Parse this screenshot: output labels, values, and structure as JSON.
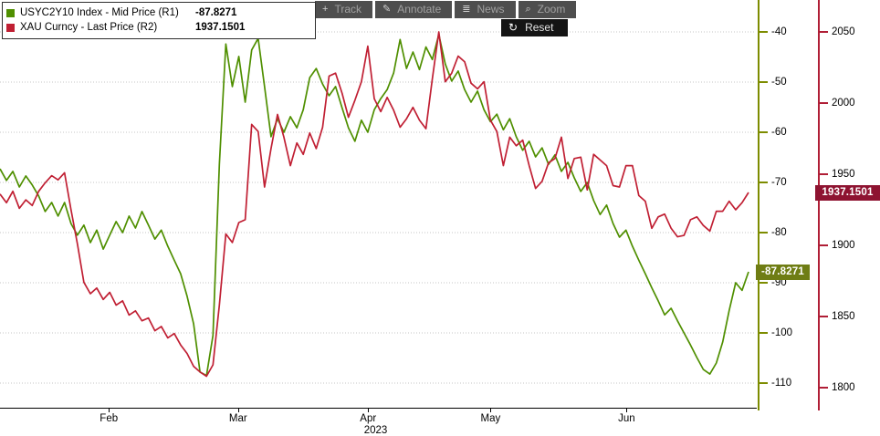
{
  "legend": {
    "series": [
      {
        "label": "USYC2Y10 Index - Mid Price (R1)",
        "value": "-87.8271",
        "color": "#4f8f00"
      },
      {
        "label": "XAU Curncy - Last Price (R2)",
        "value": "1937.1501",
        "color": "#c01f33"
      }
    ]
  },
  "toolbar": {
    "buttons": [
      {
        "label": "Track",
        "icon": "+"
      },
      {
        "label": "Annotate",
        "icon": "✎"
      },
      {
        "label": "News",
        "icon": "≣"
      },
      {
        "label": "Zoom",
        "icon": "⌕"
      }
    ],
    "reset": {
      "label": "Reset",
      "icon": "↻"
    }
  },
  "chart_data": {
    "type": "line",
    "title": "",
    "x_axis": {
      "year": "2023",
      "year_pos": 0.497,
      "month_labels": [
        {
          "text": "Feb",
          "pos": 0.144
        },
        {
          "text": "Mar",
          "pos": 0.315
        },
        {
          "text": "Apr",
          "pos": 0.487
        },
        {
          "text": "May",
          "pos": 0.649
        },
        {
          "text": "Jun",
          "pos": 0.829
        }
      ]
    },
    "grid": {
      "horizontal": true,
      "style": "dotted"
    },
    "axes": {
      "r1": {
        "name": "R1",
        "color": "#7d8c00",
        "badge_bg": "#6f7d14",
        "ticks": [
          -40,
          -50,
          -60,
          -70,
          -80,
          -90,
          -100,
          -110
        ],
        "range": [
          -114.9,
          -33.6
        ],
        "scale": {
          "v0": -40,
          "y0": 35,
          "ppu": 5.5
        },
        "badge_label": "-87.8271",
        "badge_value": -87.8271
      },
      "r2": {
        "name": "R2",
        "color": "#b01e36",
        "badge_bg": "#8e1331",
        "ticks": [
          2050,
          2000,
          1950,
          1900,
          1850,
          1800
        ],
        "range": [
          1784,
          2072
        ],
        "scale": {
          "v0": 2050,
          "y0": 35,
          "ppu": 1.56
        },
        "badge_label": "1937.1501",
        "badge_value": 1937.1501
      }
    },
    "series": [
      {
        "name": "USYC2Y10 Index - Mid Price",
        "slug": "usyc2y10-mid-price-line",
        "axis": "r1",
        "color": "#4f8f00",
        "last_value": -87.8271,
        "values": [
          -67.3,
          -69.6,
          -67.8,
          -70.9,
          -68.7,
          -70.5,
          -72.7,
          -75.8,
          -74,
          -76.7,
          -74,
          -78.2,
          -80.5,
          -78.5,
          -82,
          -79.5,
          -83.3,
          -80.5,
          -77.8,
          -80,
          -76.7,
          -79.1,
          -75.8,
          -78.5,
          -81.3,
          -79.5,
          -82.7,
          -85.5,
          -88.2,
          -92.7,
          -98.2,
          -107.8,
          -108.5,
          -100.5,
          -66.4,
          -42.4,
          -50.9,
          -44.9,
          -54,
          -43.6,
          -41.3,
          -50.9,
          -60.9,
          -57.3,
          -60,
          -56.9,
          -59.1,
          -55.5,
          -49.1,
          -47.3,
          -50.4,
          -52.7,
          -50.9,
          -55.1,
          -59.1,
          -61.8,
          -57.6,
          -60,
          -55.5,
          -53.3,
          -51.5,
          -48.2,
          -41.5,
          -47.3,
          -44,
          -47.5,
          -43,
          -45.5,
          -40.5,
          -46.4,
          -49.8,
          -47.8,
          -51.5,
          -54,
          -51.8,
          -55.5,
          -57.9,
          -56.4,
          -59.5,
          -57.3,
          -60.9,
          -63.6,
          -61.8,
          -64.9,
          -63.1,
          -66.4,
          -64.5,
          -67.8,
          -66,
          -69.1,
          -71.8,
          -70,
          -73.6,
          -76.4,
          -74.5,
          -78.2,
          -80.9,
          -79.5,
          -82.7,
          -85.5,
          -88.2,
          -91,
          -93.6,
          -96.4,
          -95.1,
          -97.6,
          -100,
          -102.4,
          -104.9,
          -107.3,
          -108.2,
          -106,
          -101.8,
          -95.5,
          -90,
          -91.5,
          -87.8271
        ]
      },
      {
        "name": "XAU Curncy - Last Price",
        "slug": "xau-last-price-line",
        "axis": "r2",
        "color": "#c01f33",
        "last_value": 1937.1501,
        "values": [
          1936,
          1930,
          1938,
          1926,
          1932,
          1928,
          1938,
          1944,
          1949,
          1946,
          1951,
          1925,
          1901,
          1874,
          1866,
          1870,
          1862,
          1867,
          1858,
          1861,
          1851,
          1854,
          1847,
          1849,
          1840,
          1843,
          1835,
          1838,
          1830,
          1824,
          1815,
          1811,
          1808,
          1816,
          1858,
          1908,
          1902,
          1916,
          1918,
          1985,
          1980,
          1941,
          1968,
          1992,
          1976,
          1956,
          1972,
          1964,
          1979,
          1968,
          1983,
          2019,
          2021,
          2007,
          1990,
          2002,
          2015,
          2040,
          2003,
          1994,
          2004,
          1995,
          1983,
          1989,
          1997,
          1988,
          1982,
          2017,
          2050,
          2015,
          2021,
          2033,
          2029,
          2014,
          2010,
          2015,
          1988,
          1980,
          1956,
          1976,
          1970,
          1974,
          1956,
          1940,
          1945,
          1958,
          1961,
          1976,
          1947,
          1961,
          1962,
          1939,
          1964,
          1960,
          1956,
          1942,
          1941,
          1956,
          1956,
          1935,
          1931,
          1912,
          1920,
          1922,
          1912,
          1906,
          1907,
          1918,
          1920,
          1914,
          1910,
          1924,
          1924,
          1931,
          1925,
          1930,
          1937.1501
        ]
      }
    ]
  }
}
